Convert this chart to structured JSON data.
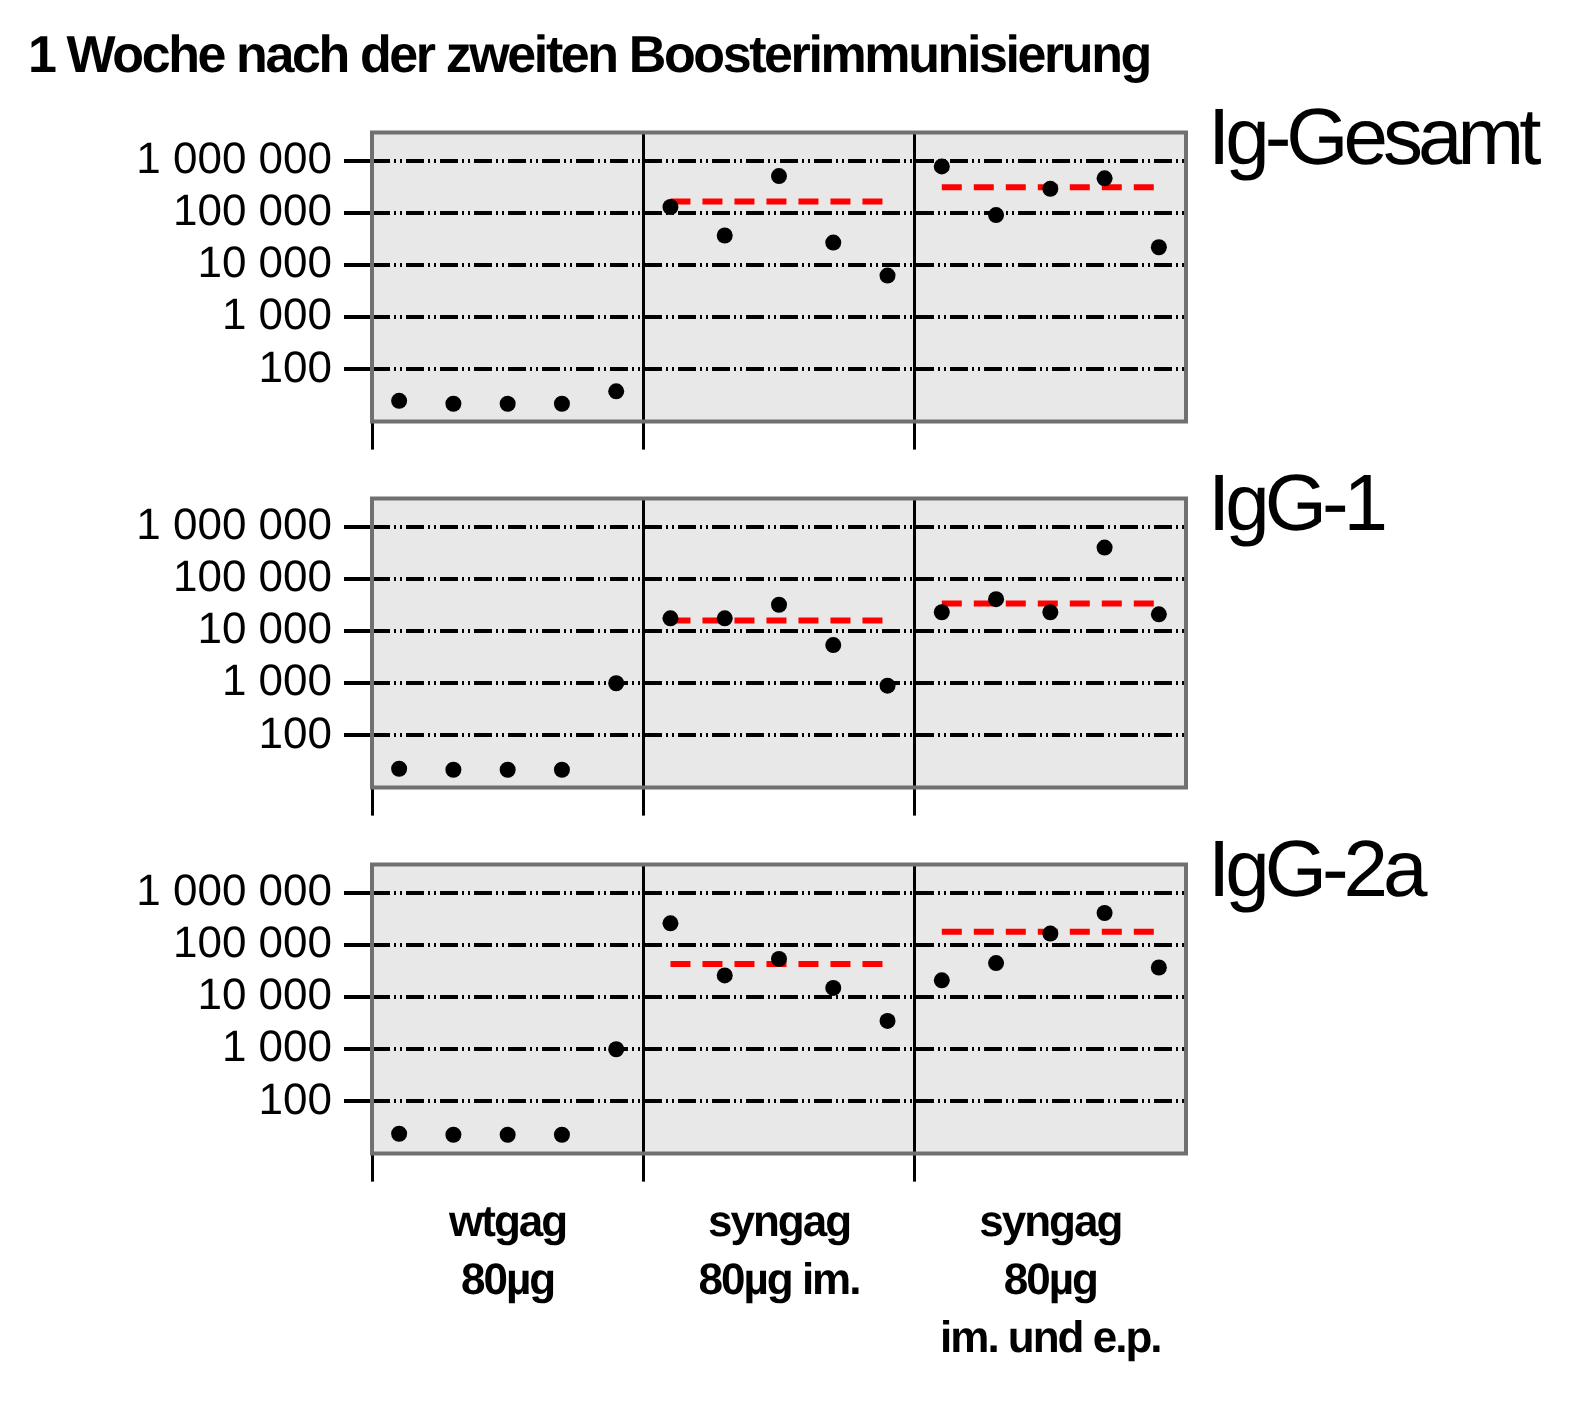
{
  "chart_data": [
    {
      "type": "scatter",
      "title": "Ig-Gesamt",
      "annotations": [
        "1 Woche nach der zweiten Boosterimmunisierung"
      ],
      "categories": [
        null,
        null,
        null,
        null,
        null,
        null,
        null,
        null,
        null,
        null,
        null,
        null,
        null,
        null,
        null
      ],
      "ylim": [
        10,
        3500000
      ],
      "log": "y",
      "grid": true,
      "tick_labels": "y",
      "marker": "circle",
      "yticks": [
        {
          "value": 100,
          "label": "100"
        },
        {
          "value": 1000,
          "label": "1 000"
        },
        {
          "value": 10000,
          "label": "10 000"
        },
        {
          "value": 100000,
          "label": "100 000"
        },
        {
          "value": 1000000,
          "label": "1 000 000"
        }
      ],
      "series": [
        {
          "color": "#000000",
          "values": [
            25,
            22,
            22,
            22,
            38,
            130000,
            37000,
            510000,
            27000,
            6300,
            780000,
            91000,
            290000,
            460000,
            22000
          ]
        },
        {
          "type": "line",
          "color": "#ff0000",
          "line_style": "dashed",
          "marker": "none",
          "values": [
            null,
            null,
            null,
            null,
            null,
            165000,
            165000,
            165000,
            165000,
            165000,
            null,
            null,
            null,
            null,
            null
          ]
        },
        {
          "type": "line",
          "color": "#ff0000",
          "line_style": "dashed",
          "marker": "none",
          "values": [
            null,
            null,
            null,
            null,
            null,
            null,
            null,
            null,
            null,
            null,
            310000,
            310000,
            310000,
            310000,
            310000
          ]
        }
      ]
    },
    {
      "type": "scatter",
      "title": "IgG-1",
      "categories": [
        null,
        null,
        null,
        null,
        null,
        null,
        null,
        null,
        null,
        null,
        null,
        null,
        null,
        null,
        null
      ],
      "ylim": [
        10,
        3500000
      ],
      "log": "y",
      "grid": true,
      "tick_labels": "y",
      "marker": "circle",
      "yticks": [
        {
          "value": 100,
          "label": "100"
        },
        {
          "value": 1000,
          "label": "1 000"
        },
        {
          "value": 10000,
          "label": "10 000"
        },
        {
          "value": 100000,
          "label": "100 000"
        },
        {
          "value": 1000000,
          "label": "1 000 000"
        }
      ],
      "series": [
        {
          "color": "#000000",
          "values": [
            23,
            22,
            22,
            22,
            1000,
            17600,
            17600,
            32000,
            5400,
            900,
            23000,
            41000,
            23000,
            400000,
            21000
          ]
        },
        {
          "type": "line",
          "color": "#ff0000",
          "line_style": "dashed",
          "marker": "none",
          "values": [
            null,
            null,
            null,
            null,
            null,
            16000,
            16000,
            16000,
            16000,
            16000,
            null,
            null,
            null,
            null,
            null
          ]
        },
        {
          "type": "line",
          "color": "#ff0000",
          "line_style": "dashed",
          "marker": "none",
          "values": [
            null,
            null,
            null,
            null,
            null,
            null,
            null,
            null,
            null,
            null,
            34000,
            34000,
            34000,
            34000,
            34000
          ]
        }
      ]
    },
    {
      "type": "scatter",
      "title": "IgG-2a",
      "annotations": [
        "wtgag\n80µg",
        "syngag\n80µg im.",
        "syngag\n80µg\nim. und e.p."
      ],
      "categories": [
        null,
        null,
        null,
        null,
        null,
        null,
        null,
        null,
        null,
        null,
        null,
        null,
        null,
        null,
        null
      ],
      "ylim": [
        10,
        3500000
      ],
      "log": "y",
      "grid": true,
      "tick_labels": "y",
      "marker": "circle",
      "yticks": [
        {
          "value": 100,
          "label": "100"
        },
        {
          "value": 1000,
          "label": "1 000"
        },
        {
          "value": 10000,
          "label": "10 000"
        },
        {
          "value": 100000,
          "label": "100 000"
        },
        {
          "value": 1000000,
          "label": "1 000 000"
        }
      ],
      "series": [
        {
          "color": "#000000",
          "values": [
            24,
            23,
            23,
            23,
            1000,
            260000,
            26000,
            54000,
            15000,
            3500,
            21000,
            45000,
            165000,
            410000,
            37000
          ]
        },
        {
          "type": "line",
          "color": "#ff0000",
          "line_style": "dashed",
          "marker": "none",
          "values": [
            null,
            null,
            null,
            null,
            null,
            43000,
            43000,
            43000,
            43000,
            43000,
            null,
            null,
            null,
            null,
            null
          ]
        },
        {
          "type": "line",
          "color": "#ff0000",
          "line_style": "dashed",
          "marker": "none",
          "values": [
            null,
            null,
            null,
            null,
            null,
            null,
            null,
            null,
            null,
            null,
            180000,
            180000,
            180000,
            180000,
            180000
          ]
        }
      ]
    }
  ]
}
